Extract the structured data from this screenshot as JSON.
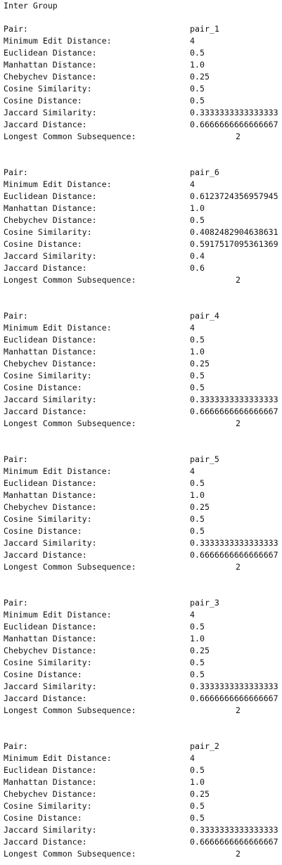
{
  "header": "Inter Group",
  "labels": {
    "pair": "Pair:",
    "med": "Minimum Edit Distance:",
    "euc": "Euclidean Distance:",
    "man": "Manhattan Distance:",
    "che": "Chebychev Distance:",
    "cs": "Cosine Similarity:",
    "cd": "Cosine Distance:",
    "js": "Jaccard Similarity:",
    "jd": "Jaccard Distance:",
    "lcs": "Longest Common Subsequence:"
  },
  "blocks": [
    {
      "pair": "pair_1",
      "med": "4",
      "euc": "0.5",
      "man": "1.0",
      "che": "0.25",
      "cs": "0.5",
      "cd": "0.5",
      "js": "0.3333333333333333",
      "jd": "0.6666666666666667",
      "lcs": "2"
    },
    {
      "pair": "pair_6",
      "med": "4",
      "euc": "0.6123724356957945",
      "man": "1.0",
      "che": "0.5",
      "cs": "0.4082482904638631",
      "cd": "0.5917517095361369",
      "js": "0.4",
      "jd": "0.6",
      "lcs": "2"
    },
    {
      "pair": "pair_4",
      "med": "4",
      "euc": "0.5",
      "man": "1.0",
      "che": "0.25",
      "cs": "0.5",
      "cd": "0.5",
      "js": "0.3333333333333333",
      "jd": "0.6666666666666667",
      "lcs": "2"
    },
    {
      "pair": "pair_5",
      "med": "4",
      "euc": "0.5",
      "man": "1.0",
      "che": "0.25",
      "cs": "0.5",
      "cd": "0.5",
      "js": "0.3333333333333333",
      "jd": "0.6666666666666667",
      "lcs": "2"
    },
    {
      "pair": "pair_3",
      "med": "4",
      "euc": "0.5",
      "man": "1.0",
      "che": "0.25",
      "cs": "0.5",
      "cd": "0.5",
      "js": "0.3333333333333333",
      "jd": "0.6666666666666667",
      "lcs": "2"
    },
    {
      "pair": "pair_2",
      "med": "4",
      "euc": "0.5",
      "man": "1.0",
      "che": "0.25",
      "cs": "0.5",
      "cd": "0.5",
      "js": "0.3333333333333333",
      "jd": "0.6666666666666667",
      "lcs": "2"
    }
  ]
}
